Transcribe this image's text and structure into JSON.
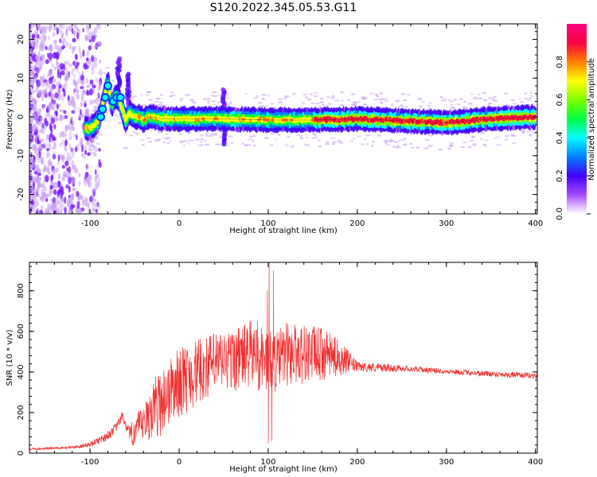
{
  "figure_title": "S120.2022.345.05.53.G11",
  "chart_data": [
    {
      "type": "heatmap",
      "title": "",
      "xlabel": "Height of straight line (km)",
      "ylabel": "Frequency (Hz)",
      "xlim": [
        -168,
        402
      ],
      "ylim": [
        -25,
        24
      ],
      "x_ticks": [
        -100,
        0,
        100,
        200,
        300,
        400
      ],
      "x_tick_labels": [
        "-100",
        "0",
        "100",
        "200",
        "300",
        "400"
      ],
      "y_ticks": [
        -20,
        -10,
        0,
        10,
        20
      ],
      "y_tick_labels": [
        "-20",
        "-10",
        "0",
        "10",
        "20"
      ],
      "grid": false,
      "colorbar": {
        "label": "Normalized spectral amplitude",
        "range": [
          0,
          1
        ],
        "ticks": [
          0.0,
          0.2,
          0.4,
          0.6,
          0.8
        ],
        "tick_labels": [
          "0.0",
          "0.2",
          "0.4",
          "0.6",
          "0.8"
        ],
        "colormap": [
          "#ffffff",
          "#a64dff",
          "#4000ff",
          "#0080ff",
          "#00ffff",
          "#00ff40",
          "#80ff00",
          "#ffff00",
          "#ff8000",
          "#ff0040",
          "#ff0080"
        ]
      },
      "ridge": {
        "description": "Main spectral ridge: frequency (Hz) vs height (km)",
        "x": [
          -150,
          -130,
          -115,
          -100,
          -92,
          -88,
          -84,
          -80,
          -76,
          -72,
          -68,
          -64,
          -60,
          -56,
          -50,
          -44,
          -40,
          -35,
          -30,
          -20,
          0,
          50,
          100,
          150,
          200,
          250,
          300,
          350,
          400
        ],
        "y": [
          -1.5,
          -2.5,
          -3,
          -3,
          -1.5,
          1,
          5,
          9,
          3,
          5,
          5,
          2,
          -1,
          1,
          0,
          0,
          -1,
          0,
          0,
          -0.5,
          -0.5,
          -0.5,
          -0.8,
          -0.8,
          -0.5,
          -1,
          -1.5,
          -0.5,
          0
        ]
      },
      "spike_features": [
        {
          "x": 50,
          "y_range": [
            -7,
            7
          ]
        },
        {
          "x": -68,
          "y_range": [
            2,
            15
          ]
        },
        {
          "x": -57,
          "y_range": [
            3,
            11
          ]
        }
      ]
    },
    {
      "type": "line",
      "title": "",
      "xlabel": "Height of straight line (km)",
      "ylabel": "SNR (10 * v/v)",
      "xlim": [
        -168,
        402
      ],
      "ylim": [
        0,
        940
      ],
      "x_ticks": [
        -100,
        0,
        100,
        200,
        300,
        400
      ],
      "x_tick_labels": [
        "-100",
        "0",
        "100",
        "200",
        "300",
        "400"
      ],
      "y_ticks": [
        0,
        200,
        400,
        600,
        800
      ],
      "y_tick_labels": [
        "0",
        "200",
        "400",
        "600",
        "800"
      ],
      "grid": false,
      "color": "#f03030",
      "series": [
        {
          "envelope_x": [
            -168,
            -120,
            -100,
            -80,
            -70,
            -64,
            -60,
            -55,
            -50,
            -40,
            -30,
            -20,
            -10,
            0,
            20,
            40,
            60,
            80,
            100,
            110,
            120,
            140,
            160,
            180,
            200,
            230,
            260,
            300,
            350,
            400
          ],
          "envelope_lo": [
            15,
            20,
            30,
            60,
            110,
            150,
            120,
            20,
            30,
            40,
            60,
            80,
            130,
            170,
            230,
            280,
            300,
            310,
            280,
            300,
            320,
            340,
            350,
            380,
            400,
            400,
            400,
            390,
            375,
            365
          ],
          "envelope_hi": [
            25,
            35,
            55,
            110,
            150,
            210,
            160,
            130,
            200,
            220,
            360,
            420,
            470,
            520,
            560,
            600,
            610,
            660,
            620,
            600,
            650,
            640,
            620,
            560,
            450,
            440,
            430,
            415,
            405,
            395
          ],
          "peaks": [
            {
              "x": 101,
              "y": 940
            },
            {
              "x": 106,
              "y": 900
            },
            {
              "x": 99,
              "y": 800
            },
            {
              "x": 88,
              "y": 650
            }
          ],
          "dips": [
            {
              "x": 100,
              "y": 50
            },
            {
              "x": 104,
              "y": 60
            }
          ]
        }
      ]
    }
  ]
}
